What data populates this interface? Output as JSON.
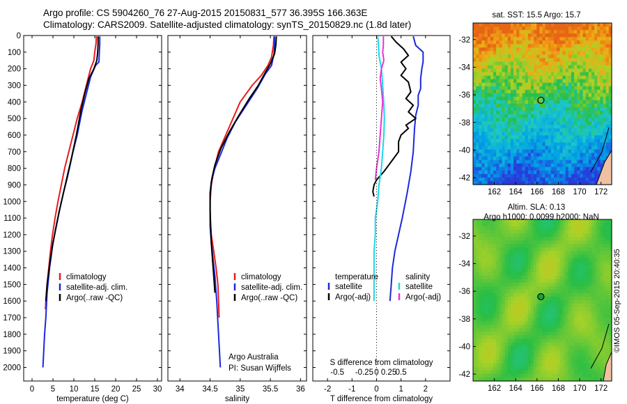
{
  "header": {
    "line1": "Argo profile: CS 5904260_76 27-Aug-2015 20150831_577 36.395S 166.363E",
    "line2": "Climatology: CARS2009. Satellite-adjusted climatology: synTS_20150829.nc (1.8d later)"
  },
  "credit": "©IMOS 05-Sep-2015 20:40:35",
  "colors": {
    "climatology": "#e8191c",
    "satellite": "#1a28dc",
    "argo": "#000000",
    "sat_salinity": "#18d8e8",
    "argo_salinity": "#e832d8"
  },
  "chart_data": [
    {
      "type": "line",
      "name": "temperature-panel",
      "xlabel": "temperature (deg C)",
      "ylabel": "",
      "xlim": [
        -2,
        31
      ],
      "ylim": [
        2050,
        0
      ],
      "xticks": [
        0,
        5,
        10,
        15,
        20,
        25,
        30
      ],
      "yticks": [
        0,
        100,
        200,
        300,
        400,
        500,
        600,
        700,
        800,
        900,
        1000,
        1100,
        1200,
        1300,
        1400,
        1500,
        1600,
        1700,
        1800,
        1900,
        2000
      ],
      "legend": [
        "climatology",
        "satellite-adj. clim.",
        "Argo(..raw -QC)"
      ],
      "series": [
        {
          "name": "climatology",
          "color": "#e8191c",
          "points": [
            [
              15.4,
              5
            ],
            [
              15.3,
              50
            ],
            [
              15,
              100
            ],
            [
              14.8,
              150
            ],
            [
              14,
              200
            ],
            [
              13,
              300
            ],
            [
              12,
              400
            ],
            [
              10.8,
              500
            ],
            [
              9.8,
              600
            ],
            [
              8.8,
              700
            ],
            [
              7.8,
              800
            ],
            [
              7,
              900
            ],
            [
              6.2,
              1000
            ],
            [
              5.5,
              1100
            ],
            [
              4.9,
              1200
            ],
            [
              4.4,
              1300
            ],
            [
              4,
              1400
            ],
            [
              3.6,
              1500
            ],
            [
              3.3,
              1600
            ],
            [
              3.2,
              1650
            ]
          ]
        },
        {
          "name": "satellite-adj. clim.",
          "color": "#1a28dc",
          "points": [
            [
              16.2,
              5
            ],
            [
              16.2,
              50
            ],
            [
              16.1,
              100
            ],
            [
              16,
              160
            ],
            [
              15.2,
              180
            ],
            [
              14,
              250
            ],
            [
              13,
              350
            ],
            [
              12,
              450
            ],
            [
              10.8,
              600
            ],
            [
              9.8,
              700
            ],
            [
              8.5,
              850
            ],
            [
              7.5,
              950
            ],
            [
              6.6,
              1050
            ],
            [
              5.8,
              1150
            ],
            [
              5,
              1250
            ],
            [
              4.2,
              1400
            ],
            [
              3.6,
              1550
            ],
            [
              3.3,
              1700
            ],
            [
              3,
              1800
            ],
            [
              2.8,
              1900
            ],
            [
              2.6,
              2000
            ]
          ]
        },
        {
          "name": "Argo(..raw -QC)",
          "color": "#000000",
          "points": [
            [
              15.8,
              5
            ],
            [
              15.8,
              50
            ],
            [
              15.7,
              100
            ],
            [
              15.5,
              150
            ],
            [
              14.8,
              200
            ],
            [
              13.6,
              260
            ],
            [
              12.6,
              350
            ],
            [
              11.7,
              450
            ],
            [
              10.6,
              600
            ],
            [
              9.5,
              730
            ],
            [
              8.4,
              850
            ],
            [
              7.4,
              960
            ],
            [
              6.4,
              1070
            ],
            [
              5.6,
              1170
            ],
            [
              4.8,
              1280
            ],
            [
              4.1,
              1400
            ],
            [
              3.6,
              1500
            ],
            [
              3.3,
              1600
            ]
          ]
        }
      ]
    },
    {
      "type": "line",
      "name": "salinity-panel",
      "xlabel": "salinity",
      "ylabel": "",
      "xlim": [
        33.8,
        36.1
      ],
      "ylim": [
        2050,
        0
      ],
      "xticks": [
        34,
        34.5,
        35,
        35.5,
        36
      ],
      "legend": [
        "climatology",
        "satellite-adj. clim.",
        "Argo(..raw -QC)"
      ],
      "annotation": [
        "Argo Australia",
        "PI: Susan Wijffels"
      ],
      "series": [
        {
          "name": "climatology",
          "color": "#e8191c",
          "points": [
            [
              35.56,
              5
            ],
            [
              35.55,
              60
            ],
            [
              35.52,
              130
            ],
            [
              35.46,
              180
            ],
            [
              35.35,
              240
            ],
            [
              35.2,
              300
            ],
            [
              35,
              400
            ],
            [
              34.88,
              500
            ],
            [
              34.76,
              600
            ],
            [
              34.64,
              700
            ],
            [
              34.57,
              800
            ],
            [
              34.52,
              900
            ],
            [
              34.5,
              1000
            ],
            [
              34.5,
              1100
            ],
            [
              34.52,
              1200
            ],
            [
              34.56,
              1300
            ],
            [
              34.6,
              1400
            ],
            [
              34.63,
              1500
            ],
            [
              34.64,
              1600
            ],
            [
              34.65,
              1700
            ]
          ]
        },
        {
          "name": "satellite-adj. clim.",
          "color": "#1a28dc",
          "points": [
            [
              35.57,
              5
            ],
            [
              35.57,
              60
            ],
            [
              35.56,
              110
            ],
            [
              35.52,
              180
            ],
            [
              35.42,
              230
            ],
            [
              35.28,
              320
            ],
            [
              35.1,
              420
            ],
            [
              34.92,
              520
            ],
            [
              34.78,
              620
            ],
            [
              34.67,
              720
            ],
            [
              34.58,
              800
            ],
            [
              34.52,
              880
            ],
            [
              34.5,
              950
            ],
            [
              34.5,
              1050
            ],
            [
              34.5,
              1150
            ],
            [
              34.52,
              1250
            ],
            [
              34.55,
              1350
            ],
            [
              34.58,
              1450
            ],
            [
              34.61,
              1600
            ],
            [
              34.64,
              1800
            ],
            [
              34.67,
              2000
            ]
          ]
        },
        {
          "name": "Argo(..raw -QC)",
          "color": "#000000",
          "points": [
            [
              35.6,
              5
            ],
            [
              35.59,
              60
            ],
            [
              35.57,
              110
            ],
            [
              35.5,
              170
            ],
            [
              35.42,
              220
            ],
            [
              35.3,
              300
            ],
            [
              35.15,
              380
            ],
            [
              34.98,
              480
            ],
            [
              34.82,
              580
            ],
            [
              34.68,
              680
            ],
            [
              34.58,
              780
            ],
            [
              34.53,
              860
            ],
            [
              34.5,
              950
            ],
            [
              34.5,
              1050
            ],
            [
              34.51,
              1150
            ],
            [
              34.52,
              1250
            ],
            [
              34.54,
              1350
            ],
            [
              34.56,
              1450
            ],
            [
              34.58,
              1550
            ]
          ]
        }
      ]
    },
    {
      "type": "line",
      "name": "difference-panel",
      "xlabel": "T difference from climatology",
      "xlabel_top": "S difference from climatology",
      "xlim": [
        -2.6,
        3
      ],
      "ylim": [
        2050,
        0
      ],
      "xticks_bottom": [
        -2,
        -1,
        0,
        1,
        2
      ],
      "xticks_top": [
        "-0.5",
        "-0.25",
        "0",
        "0.25",
        "0.5"
      ],
      "legend_titles": [
        "temperature",
        "salinity"
      ],
      "legend": [
        "satellite",
        "Argo(-adj)",
        "satellite",
        "Argo(-adj)"
      ],
      "series": [
        {
          "name": "temperature satellite",
          "color": "#1a28dc",
          "points": [
            [
              1.5,
              5
            ],
            [
              1.6,
              60
            ],
            [
              1.9,
              100
            ],
            [
              1.9,
              160
            ],
            [
              1.85,
              200
            ],
            [
              1.8,
              260
            ],
            [
              1.8,
              320
            ],
            [
              1.7,
              360
            ],
            [
              1.7,
              420
            ],
            [
              1.6,
              480
            ],
            [
              1.55,
              560
            ],
            [
              1.5,
              700
            ],
            [
              1.4,
              820
            ],
            [
              1.25,
              950
            ],
            [
              1.05,
              1100
            ],
            [
              0.9,
              1200
            ],
            [
              0.75,
              1300
            ],
            [
              0.65,
              1400
            ],
            [
              0.6,
              1500
            ],
            [
              0.55,
              1600
            ]
          ]
        },
        {
          "name": "temperature Argo(-adj)",
          "color": "#000000",
          "points": [
            [
              0.6,
              5
            ],
            [
              0.8,
              40
            ],
            [
              1.1,
              80
            ],
            [
              1.3,
              120
            ],
            [
              1.0,
              160
            ],
            [
              1.2,
              200
            ],
            [
              1.0,
              240
            ],
            [
              1.3,
              280
            ],
            [
              1.4,
              340
            ],
            [
              1.2,
              380
            ],
            [
              1.5,
              420
            ],
            [
              1.3,
              460
            ],
            [
              1.6,
              500
            ],
            [
              1.2,
              540
            ],
            [
              1.3,
              560
            ],
            [
              1.0,
              600
            ],
            [
              0.9,
              640
            ],
            [
              0.9,
              700
            ],
            [
              0.6,
              760
            ],
            [
              0.3,
              820
            ],
            [
              0,
              870
            ],
            [
              -0.1,
              900
            ],
            [
              -0.15,
              940
            ],
            [
              -0.1,
              970
            ]
          ]
        },
        {
          "name": "salinity satellite",
          "color": "#18d8e8",
          "points": [
            [
              0.05,
              5
            ],
            [
              0.08,
              60
            ],
            [
              0.1,
              120
            ],
            [
              0.2,
              200
            ],
            [
              0.25,
              300
            ],
            [
              0.3,
              420
            ],
            [
              0.32,
              500
            ],
            [
              0.3,
              600
            ],
            [
              0.25,
              700
            ],
            [
              0.2,
              800
            ],
            [
              0.1,
              900
            ],
            [
              0.05,
              1000
            ],
            [
              -0.05,
              1100
            ],
            [
              -0.05,
              1200
            ],
            [
              -0.1,
              1300
            ],
            [
              -0.1,
              1400
            ],
            [
              -0.1,
              1500
            ],
            [
              -0.1,
              1600
            ]
          ]
        },
        {
          "name": "salinity Argo(-adj)",
          "color": "#e832d8",
          "points": [
            [
              0.28,
              5
            ],
            [
              0.28,
              60
            ],
            [
              0.25,
              100
            ],
            [
              0.3,
              150
            ],
            [
              0.2,
              200
            ],
            [
              0.15,
              260
            ],
            [
              0.2,
              320
            ],
            [
              0.25,
              400
            ],
            [
              0.2,
              500
            ],
            [
              0.15,
              600
            ],
            [
              0.1,
              700
            ],
            [
              0,
              800
            ],
            [
              -0.05,
              870
            ]
          ]
        }
      ]
    },
    {
      "type": "heatmap",
      "name": "sst-map",
      "title": "sat. SST: 15.5  Argo: 15.7",
      "xlim": [
        160,
        173
      ],
      "ylim": [
        -42.5,
        -30.8
      ],
      "xticks": [
        162,
        164,
        166,
        168,
        170,
        172
      ],
      "yticks": [
        -32,
        -34,
        -36,
        -38,
        -40,
        -42
      ],
      "marker": [
        166.363,
        -36.395
      ]
    },
    {
      "type": "heatmap",
      "name": "sla-map",
      "title": "Altim. SLA: 0.13",
      "subtitle": "Argo h1000: 0.0099  h2000: NaN",
      "xlim": [
        160,
        173
      ],
      "ylim": [
        -42.5,
        -30.8
      ],
      "xticks": [
        162,
        164,
        166,
        168,
        170,
        172
      ],
      "yticks": [
        -32,
        -34,
        -36,
        -38,
        -40,
        -42
      ],
      "marker": [
        166.363,
        -36.395
      ]
    }
  ]
}
